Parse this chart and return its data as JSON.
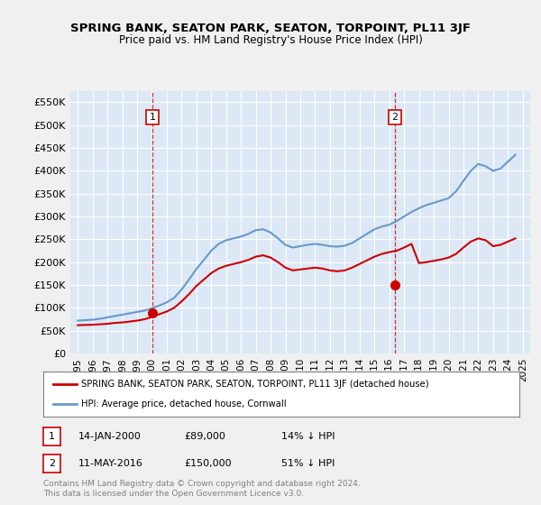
{
  "title": "SPRING BANK, SEATON PARK, SEATON, TORPOINT, PL11 3JF",
  "subtitle": "Price paid vs. HM Land Registry's House Price Index (HPI)",
  "legend_line1": "SPRING BANK, SEATON PARK, SEATON, TORPOINT, PL11 3JF (detached house)",
  "legend_line2": "HPI: Average price, detached house, Cornwall",
  "footnote": "Contains HM Land Registry data © Crown copyright and database right 2024.\nThis data is licensed under the Open Government Licence v3.0.",
  "sale1_label": "1",
  "sale1_date": "14-JAN-2000",
  "sale1_price": "£89,000",
  "sale1_hpi": "14% ↓ HPI",
  "sale1_x": 2000.04,
  "sale1_y": 89000,
  "sale2_label": "2",
  "sale2_date": "11-MAY-2016",
  "sale2_price": "£150,000",
  "sale2_hpi": "51% ↓ HPI",
  "sale2_x": 2016.36,
  "sale2_y": 150000,
  "red_line_color": "#cc0000",
  "blue_line_color": "#6699cc",
  "background_color": "#e8f0f8",
  "plot_bg_color": "#dce8f5",
  "grid_color": "#ffffff",
  "ylim": [
    0,
    575000
  ],
  "xlim_start": 1994.5,
  "xlim_end": 2025.5,
  "hpi_years": [
    1995,
    1995.5,
    1996,
    1996.5,
    1997,
    1997.5,
    1998,
    1998.5,
    1999,
    1999.5,
    2000,
    2000.5,
    2001,
    2001.5,
    2002,
    2002.5,
    2003,
    2003.5,
    2004,
    2004.5,
    2005,
    2005.5,
    2006,
    2006.5,
    2007,
    2007.5,
    2008,
    2008.5,
    2009,
    2009.5,
    2010,
    2010.5,
    2011,
    2011.5,
    2012,
    2012.5,
    2013,
    2013.5,
    2014,
    2014.5,
    2015,
    2015.5,
    2016,
    2016.5,
    2017,
    2017.5,
    2018,
    2018.5,
    2019,
    2019.5,
    2020,
    2020.5,
    2021,
    2021.5,
    2022,
    2022.5,
    2023,
    2023.5,
    2024,
    2024.5
  ],
  "hpi_values": [
    72000,
    73000,
    74000,
    76000,
    79000,
    82000,
    85000,
    88000,
    91000,
    94000,
    99000,
    105000,
    112000,
    122000,
    140000,
    162000,
    185000,
    205000,
    225000,
    240000,
    248000,
    252000,
    256000,
    262000,
    270000,
    272000,
    265000,
    252000,
    238000,
    232000,
    235000,
    238000,
    240000,
    238000,
    235000,
    234000,
    236000,
    242000,
    252000,
    262000,
    272000,
    278000,
    282000,
    290000,
    300000,
    310000,
    318000,
    325000,
    330000,
    335000,
    340000,
    355000,
    378000,
    400000,
    415000,
    410000,
    400000,
    405000,
    420000,
    435000
  ],
  "red_years": [
    1995,
    1995.5,
    1996,
    1996.5,
    1997,
    1997.5,
    1998,
    1998.5,
    1999,
    1999.5,
    2000,
    2000.5,
    2001,
    2001.5,
    2002,
    2002.5,
    2003,
    2003.5,
    2004,
    2004.5,
    2005,
    2005.5,
    2006,
    2006.5,
    2007,
    2007.5,
    2008,
    2008.5,
    2009,
    2009.5,
    2010,
    2010.5,
    2011,
    2011.5,
    2012,
    2012.5,
    2013,
    2013.5,
    2014,
    2014.5,
    2015,
    2015.5,
    2016,
    2016.5,
    2017,
    2017.5,
    2018,
    2018.5,
    2019,
    2019.5,
    2020,
    2020.5,
    2021,
    2021.5,
    2022,
    2022.5,
    2023,
    2023.5,
    2024,
    2024.5
  ],
  "red_values": [
    62000,
    62500,
    63000,
    64000,
    65000,
    67000,
    68000,
    70000,
    72000,
    75000,
    80000,
    86000,
    92000,
    100000,
    114000,
    130000,
    148000,
    162000,
    176000,
    186000,
    192000,
    196000,
    200000,
    205000,
    212000,
    215000,
    210000,
    200000,
    188000,
    182000,
    184000,
    186000,
    188000,
    186000,
    182000,
    180000,
    182000,
    188000,
    196000,
    204000,
    212000,
    218000,
    222000,
    225000,
    232000,
    240000,
    198000,
    200000,
    203000,
    206000,
    210000,
    218000,
    232000,
    245000,
    252000,
    248000,
    235000,
    238000,
    245000,
    252000
  ],
  "xtick_years": [
    1995,
    1996,
    1997,
    1998,
    1999,
    2000,
    2001,
    2002,
    2003,
    2004,
    2005,
    2006,
    2007,
    2008,
    2009,
    2010,
    2011,
    2012,
    2013,
    2014,
    2015,
    2016,
    2017,
    2018,
    2019,
    2020,
    2021,
    2022,
    2023,
    2024,
    2025
  ]
}
